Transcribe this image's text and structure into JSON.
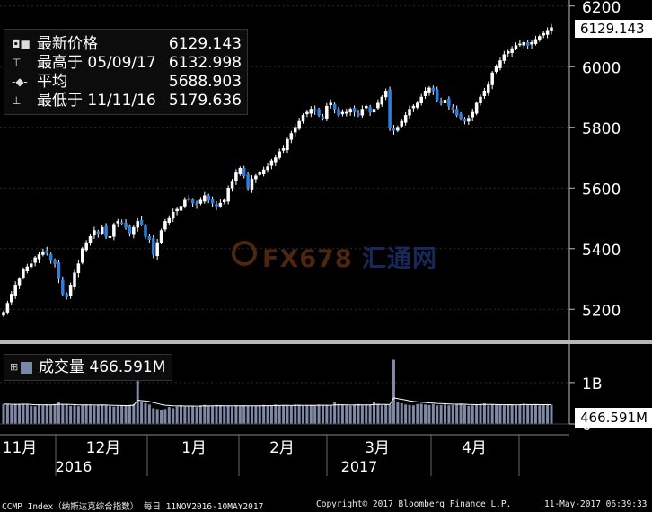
{
  "chart_data": [
    {
      "type": "candlestick",
      "title": "",
      "ylim": [
        5100,
        6220
      ],
      "yticks": [
        5200,
        5400,
        5600,
        5800,
        6000,
        6200
      ],
      "last_price": "6129.143",
      "legend": [
        {
          "marker": "◘■",
          "label": "最新价格",
          "value": "6129.143"
        },
        {
          "marker": "⊤",
          "label": "最高于 05/09/17",
          "value": "6132.998"
        },
        {
          "marker": "-◆-",
          "label": "平均",
          "value": "5688.903"
        },
        {
          "marker": "⊥",
          "label": "最低于 11/11/16",
          "value": "5179.636"
        }
      ],
      "closes": [
        5190,
        5220,
        5250,
        5280,
        5300,
        5330,
        5340,
        5350,
        5370,
        5380,
        5390,
        5385,
        5360,
        5350,
        5300,
        5250,
        5240,
        5280,
        5320,
        5350,
        5400,
        5420,
        5440,
        5460,
        5450,
        5470,
        5440,
        5440,
        5480,
        5490,
        5485,
        5470,
        5450,
        5470,
        5490,
        5480,
        5440,
        5430,
        5380,
        5420,
        5460,
        5490,
        5500,
        5520,
        5530,
        5540,
        5560,
        5565,
        5550,
        5545,
        5560,
        5575,
        5560,
        5550,
        5540,
        5550,
        5560,
        5600,
        5620,
        5650,
        5665,
        5640,
        5600,
        5630,
        5640,
        5650,
        5660,
        5670,
        5690,
        5700,
        5720,
        5730,
        5760,
        5780,
        5800,
        5820,
        5840,
        5850,
        5860,
        5855,
        5840,
        5830,
        5870,
        5880,
        5860,
        5840,
        5850,
        5850,
        5860,
        5850,
        5840,
        5860,
        5870,
        5850,
        5860,
        5880,
        5900,
        5920,
        5800,
        5790,
        5800,
        5820,
        5840,
        5860,
        5870,
        5880,
        5900,
        5920,
        5930,
        5920,
        5890,
        5880,
        5890,
        5870,
        5860,
        5840,
        5830,
        5820,
        5830,
        5850,
        5880,
        5900,
        5920,
        5940,
        5980,
        6000,
        6020,
        6040,
        6050,
        6060,
        6070,
        6075,
        6080,
        6070,
        6080,
        6090,
        6100,
        6110,
        6120,
        6129
      ],
      "volume": {
        "label": "成交量",
        "last": "466.591M",
        "yticks_labels": [
          "0",
          "1B"
        ],
        "bars_millions": [
          480,
          470,
          460,
          470,
          480,
          490,
          470,
          440,
          430,
          460,
          450,
          470,
          460,
          480,
          530,
          480,
          470,
          440,
          450,
          430,
          460,
          470,
          450,
          440,
          460,
          470,
          450,
          430,
          420,
          430,
          450,
          440,
          460,
          480,
          1250,
          520,
          500,
          470,
          380,
          360,
          340,
          360,
          410,
          380,
          420,
          450,
          420,
          430,
          440,
          410,
          450,
          460,
          430,
          440,
          460,
          450,
          430,
          440,
          420,
          450,
          430,
          450,
          440,
          430,
          440,
          450,
          460,
          440,
          450,
          470,
          440,
          460,
          450,
          440,
          470,
          460,
          440,
          450,
          460,
          440,
          470,
          450,
          460,
          440,
          520,
          480,
          460,
          450,
          440,
          470,
          480,
          450,
          470,
          460,
          540,
          480,
          450,
          470,
          460,
          1550,
          520,
          500,
          470,
          460,
          450,
          480,
          490,
          470,
          460,
          480,
          450,
          460,
          470,
          450,
          460,
          470,
          490,
          460,
          440,
          450,
          460,
          480,
          500,
          450,
          470,
          460,
          460,
          450,
          470,
          460,
          450,
          470,
          490,
          470,
          460,
          480,
          450,
          470,
          460,
          466
        ]
      },
      "x_tick_labels": [
        "11月",
        "12月",
        "1月",
        "2月",
        "3月",
        "4月"
      ],
      "year_labels": [
        "2016",
        "2017"
      ]
    }
  ],
  "watermark": {
    "latin": "FX678",
    "cn": "汇通网"
  },
  "footer": {
    "security": "CCMP Index（纳斯达克综合指数）  每日 11NOV2016-10MAY2017",
    "copyright": "Copyright© 2017 Bloomberg Finance L.P.",
    "timestamp": "11-May-2017 06:39:33"
  }
}
